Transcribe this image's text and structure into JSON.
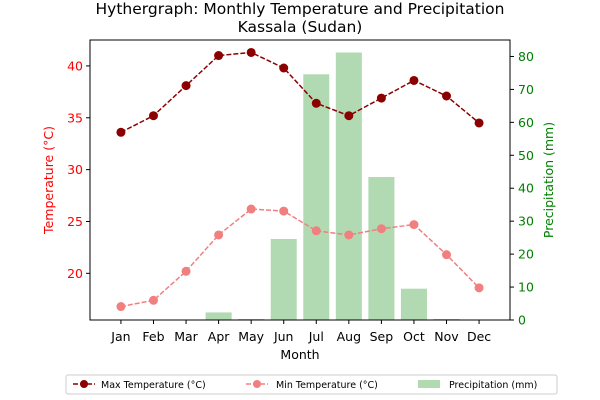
{
  "chart_data": {
    "type": "bar+line",
    "title_line1": "Hythergraph: Monthly Temperature and Precipitation",
    "title_line2": "Kassala (Sudan)",
    "xlabel": "Month",
    "ylabel_left": "Temperature (°C)",
    "ylabel_right": "Precipitation (mm)",
    "categories": [
      "Jan",
      "Feb",
      "Mar",
      "Apr",
      "May",
      "Jun",
      "Jul",
      "Aug",
      "Sep",
      "Oct",
      "Nov",
      "Dec"
    ],
    "ylim_left": [
      15.5,
      42.5
    ],
    "yticks_left": [
      20,
      25,
      30,
      35,
      40
    ],
    "ylim_right": [
      0,
      85
    ],
    "yticks_right": [
      0,
      10,
      20,
      30,
      40,
      50,
      60,
      70,
      80
    ],
    "legend_position": "bottom-center",
    "series": [
      {
        "name": "Max Temperature (°C)",
        "kind": "line",
        "axis": "left",
        "color": "#8b0000",
        "values": [
          33.6,
          35.2,
          38.1,
          41.0,
          41.3,
          39.8,
          36.4,
          35.2,
          36.9,
          38.6,
          37.1,
          34.5
        ]
      },
      {
        "name": "Min Temperature (°C)",
        "kind": "line",
        "axis": "left",
        "color": "#f08080",
        "values": [
          16.8,
          17.4,
          20.2,
          23.7,
          26.2,
          26.0,
          24.1,
          23.7,
          24.3,
          24.7,
          21.8,
          18.6
        ]
      },
      {
        "name": "Precipitation (mm)",
        "kind": "bar",
        "axis": "right",
        "color": "#b2dab2",
        "values": [
          0,
          0,
          0,
          2.3,
          0.3,
          24.6,
          74.6,
          81.2,
          43.4,
          9.5,
          0.3,
          0
        ]
      }
    ],
    "colors": {
      "left_axis": "#ff0000",
      "right_axis": "#008000"
    }
  }
}
